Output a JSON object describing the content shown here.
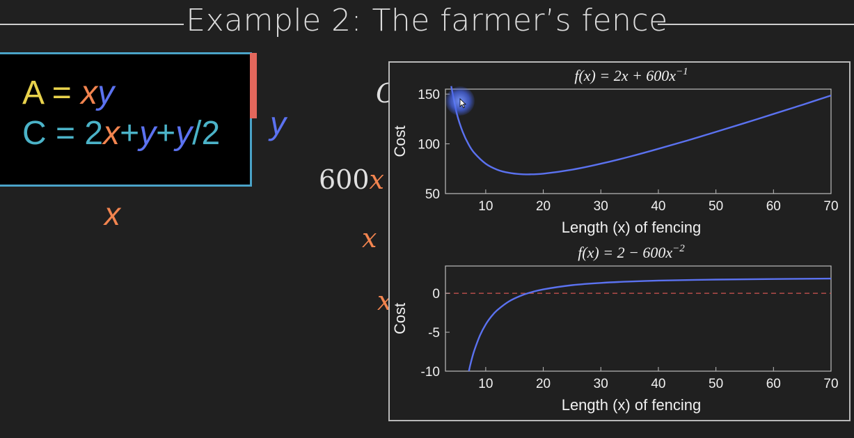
{
  "slide": {
    "title": "Example 2: The farmer’s fence"
  },
  "equations": {
    "area": {
      "lhs": "A",
      "eq": " = ",
      "x": "x",
      "y": "y"
    },
    "cost": {
      "lhs": "C",
      "eq": " = 2",
      "x": "x",
      "plus1": "+",
      "y1": "y",
      "plus2": "+",
      "y2": "y",
      "tail": "/2"
    }
  },
  "labels": {
    "side_y": "y",
    "side_x": "x",
    "partial_c": "C",
    "partial_600": "600",
    "partial_600x": "x",
    "partial_x1": "x",
    "partial_x2": "x"
  },
  "colors": {
    "background": "#202020",
    "curve": "#5b72f0",
    "zero_line": "#c0504d",
    "area_label": "#e8d24c",
    "cost_label": "#4bb3c8",
    "x_var": "#f2844f",
    "y_var": "#5b72f0",
    "box_border": "#4aa3c8",
    "side_bar": "#e3675c"
  },
  "cursor": {
    "icon": "pointer-cursor-icon"
  },
  "chart_data": [
    {
      "type": "line",
      "title": "f(x) = 2x + 600x⁻¹",
      "title_parts": {
        "main": "f(x) = 2x + 600x",
        "sup": "−1"
      },
      "xlabel": "Length (x) of fencing",
      "ylabel": "Cost",
      "xlim": [
        3,
        70
      ],
      "ylim": [
        50,
        155
      ],
      "xticks": [
        10,
        20,
        30,
        40,
        50,
        60,
        70
      ],
      "yticks": [
        50,
        100,
        150
      ],
      "series": [
        {
          "x": [
            4,
            5,
            6,
            7,
            8,
            10,
            12,
            14,
            16,
            17.32,
            20,
            25,
            30,
            35,
            40,
            45,
            50,
            55,
            60,
            65,
            70
          ],
          "y": [
            158,
            130,
            112,
            99.7,
            91,
            80,
            74,
            70.9,
            69.5,
            69.3,
            70,
            74,
            80,
            87.1,
            95,
            103.3,
            112,
            120.9,
            130,
            139.2,
            148.6
          ]
        }
      ]
    },
    {
      "type": "line",
      "title": "f(x) = 2 − 600x⁻²",
      "title_parts": {
        "main": "f(x) = 2 − 600x",
        "sup": "−2"
      },
      "xlabel": "Length (x) of fencing",
      "ylabel": "Cost",
      "xlim": [
        3,
        70
      ],
      "ylim": [
        -10,
        3.5
      ],
      "xticks": [
        10,
        20,
        30,
        40,
        50,
        60,
        70
      ],
      "yticks": [
        0,
        -5,
        -10
      ],
      "reference_line": {
        "y": 0,
        "style": "dashed"
      },
      "series": [
        {
          "x": [
            7.07,
            7.5,
            8,
            9,
            10,
            11,
            12,
            14,
            16,
            17.32,
            20,
            25,
            30,
            35,
            40,
            50,
            60,
            70
          ],
          "y": [
            -10,
            -8.67,
            -7.38,
            -5.41,
            -4,
            -2.96,
            -2.17,
            -1.06,
            -0.34,
            0,
            0.5,
            1.04,
            1.33,
            1.51,
            1.63,
            1.76,
            1.83,
            1.88
          ]
        }
      ]
    }
  ]
}
